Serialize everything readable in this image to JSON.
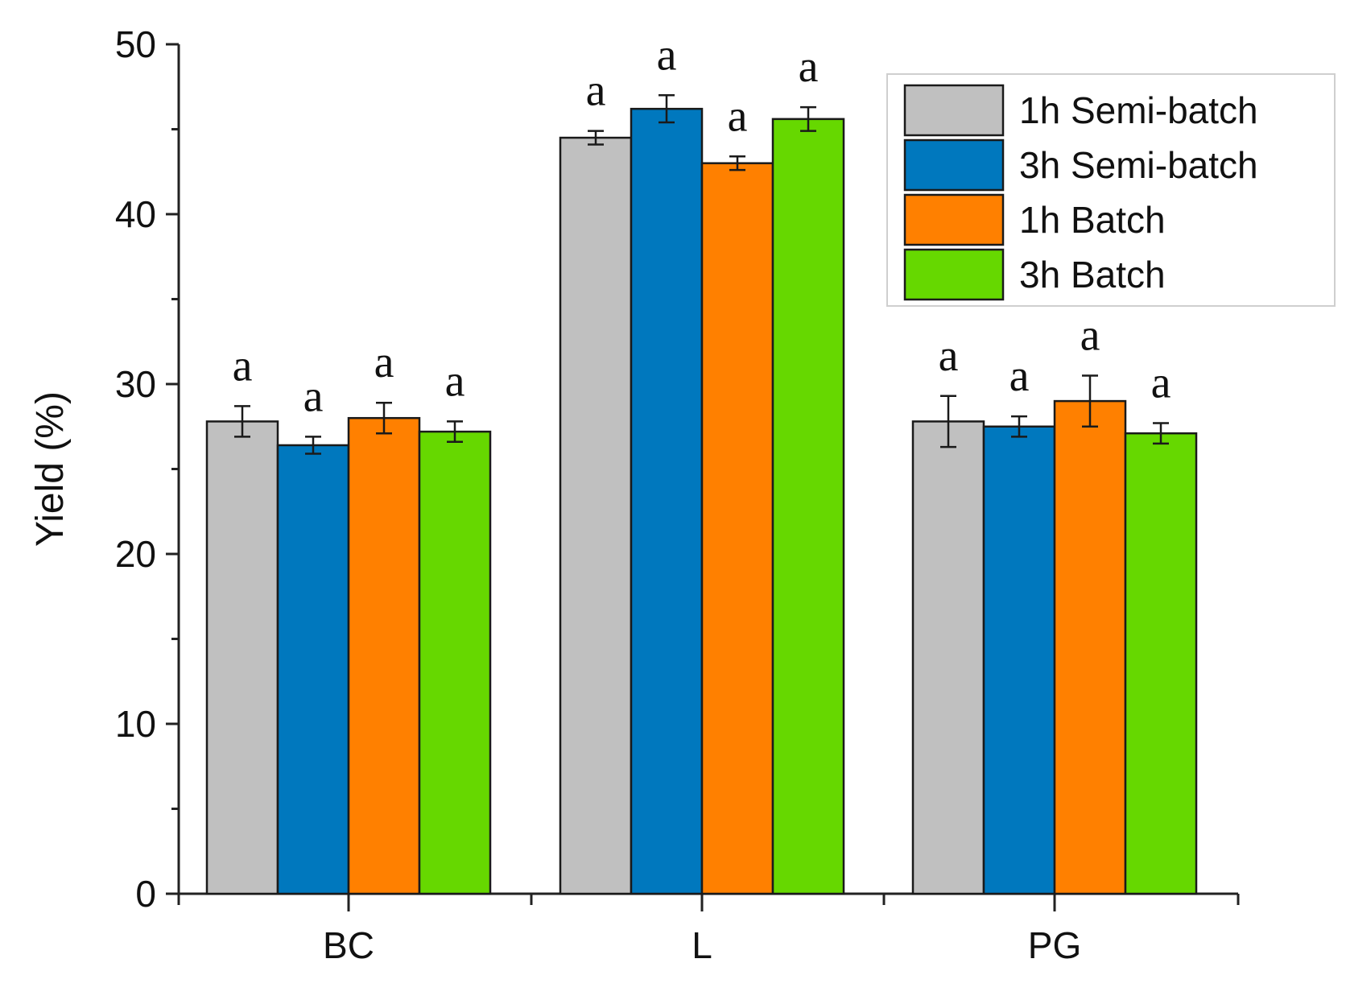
{
  "chart_data": {
    "type": "bar",
    "title": "",
    "xlabel": "",
    "ylabel": "Yield (%)",
    "ylim": [
      0,
      50
    ],
    "yticks": [
      "0",
      "10",
      "20",
      "30",
      "40",
      "50"
    ],
    "categories": [
      "BC",
      "L",
      "PG"
    ],
    "legend_position": "top-right",
    "series": [
      {
        "name": "1h Semi-batch",
        "color": "#c0c0c0",
        "values": [
          27.8,
          44.5,
          27.8
        ],
        "errors": [
          0.9,
          0.4,
          1.5
        ],
        "annotations": [
          "a",
          "a",
          "a"
        ]
      },
      {
        "name": "3h Semi-batch",
        "color": "#0078be",
        "values": [
          26.4,
          46.2,
          27.5
        ],
        "errors": [
          0.5,
          0.8,
          0.6
        ],
        "annotations": [
          "a",
          "a",
          "a"
        ]
      },
      {
        "name": "1h Batch",
        "color": "#ff8000",
        "values": [
          28.0,
          43.0,
          29.0
        ],
        "errors": [
          0.9,
          0.4,
          1.5
        ],
        "annotations": [
          "a",
          "a",
          "a"
        ]
      },
      {
        "name": "3h Batch",
        "color": "#66d800",
        "values": [
          27.2,
          45.6,
          27.1
        ],
        "errors": [
          0.6,
          0.7,
          0.6
        ],
        "annotations": [
          "a",
          "a",
          "a"
        ]
      }
    ]
  }
}
